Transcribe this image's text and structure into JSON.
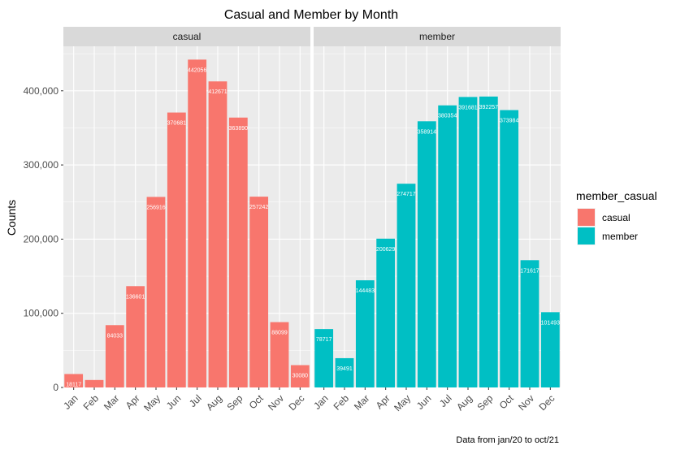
{
  "chart_data": {
    "type": "bar",
    "title": "Casual and Member by Month",
    "ylabel": "Counts",
    "xlabel": "",
    "caption": "Data from jan/20 to oct/21",
    "categories": [
      "Jan",
      "Feb",
      "Mar",
      "Apr",
      "May",
      "Jun",
      "Jul",
      "Aug",
      "Sep",
      "Oct",
      "Nov",
      "Dec"
    ],
    "ylim": [
      0,
      460000
    ],
    "yticks": [
      0,
      100000,
      200000,
      300000,
      400000
    ],
    "ytick_labels": [
      "0",
      "100,000",
      "200,000",
      "300,000",
      "400,000"
    ],
    "grid": true,
    "legend": {
      "title": "member_casual",
      "placement": "right"
    },
    "series": [
      {
        "name": "casual",
        "color": "#F8766D",
        "values": [
          18117,
          10051,
          84033,
          136601,
          256916,
          370681,
          442056,
          412671,
          363890,
          257242,
          88099,
          30080
        ],
        "labels": [
          "18117",
          "10051",
          "84033",
          "136601",
          "256916",
          "370681",
          "442056",
          "412671",
          "363890",
          "257242",
          "88099",
          "30080"
        ]
      },
      {
        "name": "member",
        "color": "#00BFC4",
        "values": [
          78717,
          39491,
          144483,
          200629,
          274717,
          358914,
          380354,
          391681,
          392257,
          373984,
          171617,
          101493
        ],
        "labels": [
          "78717",
          "39491",
          "144483",
          "200629",
          "274717",
          "358914",
          "380354",
          "391681",
          "392257",
          "373984",
          "171617",
          "101493"
        ]
      }
    ],
    "facets": [
      "casual",
      "member"
    ]
  }
}
